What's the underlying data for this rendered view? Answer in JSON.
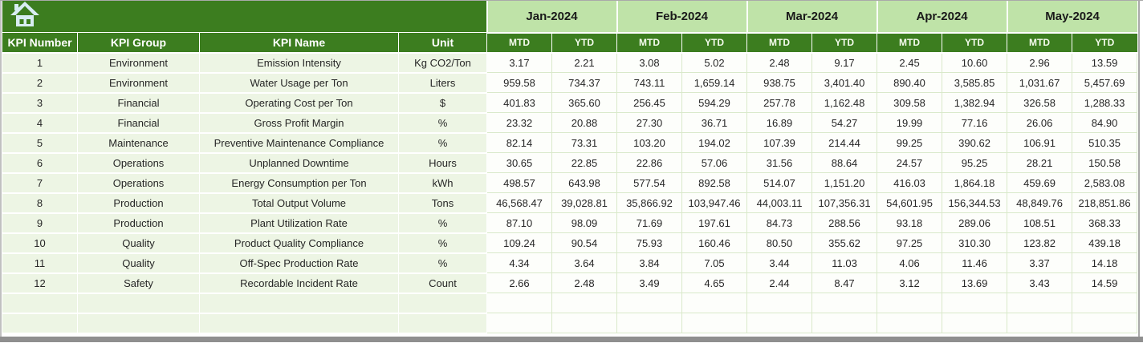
{
  "table": {
    "fixed_headers": [
      "KPI Number",
      "KPI Group",
      "KPI Name",
      "Unit"
    ],
    "months": [
      "Jan-2024",
      "Feb-2024",
      "Mar-2024",
      "Apr-2024",
      "May-2024"
    ],
    "sub_headers": [
      "MTD",
      "YTD"
    ],
    "rows": [
      {
        "kpi_number": "1",
        "kpi_group": "Environment",
        "kpi_name": "Emission Intensity",
        "unit": "Kg CO2/Ton",
        "values": [
          "3.17",
          "2.21",
          "3.08",
          "5.02",
          "2.48",
          "9.17",
          "2.45",
          "10.60",
          "2.96",
          "13.59"
        ]
      },
      {
        "kpi_number": "2",
        "kpi_group": "Environment",
        "kpi_name": "Water Usage per Ton",
        "unit": "Liters",
        "values": [
          "959.58",
          "734.37",
          "743.11",
          "1,659.14",
          "938.75",
          "3,401.40",
          "890.40",
          "3,585.85",
          "1,031.67",
          "5,457.69"
        ]
      },
      {
        "kpi_number": "3",
        "kpi_group": "Financial",
        "kpi_name": "Operating Cost per Ton",
        "unit": "$",
        "values": [
          "401.83",
          "365.60",
          "256.45",
          "594.29",
          "257.78",
          "1,162.48",
          "309.58",
          "1,382.94",
          "326.58",
          "1,288.33"
        ]
      },
      {
        "kpi_number": "4",
        "kpi_group": "Financial",
        "kpi_name": "Gross Profit Margin",
        "unit": "%",
        "values": [
          "23.32",
          "20.88",
          "27.30",
          "36.71",
          "16.89",
          "54.27",
          "19.99",
          "77.16",
          "26.06",
          "84.90"
        ]
      },
      {
        "kpi_number": "5",
        "kpi_group": "Maintenance",
        "kpi_name": "Preventive Maintenance Compliance",
        "unit": "%",
        "values": [
          "82.14",
          "73.31",
          "103.20",
          "194.02",
          "107.39",
          "214.44",
          "99.25",
          "390.62",
          "106.91",
          "510.35"
        ]
      },
      {
        "kpi_number": "6",
        "kpi_group": "Operations",
        "kpi_name": "Unplanned Downtime",
        "unit": "Hours",
        "values": [
          "30.65",
          "22.85",
          "22.86",
          "57.06",
          "31.56",
          "88.64",
          "24.57",
          "95.25",
          "28.21",
          "150.58"
        ]
      },
      {
        "kpi_number": "7",
        "kpi_group": "Operations",
        "kpi_name": "Energy Consumption per Ton",
        "unit": "kWh",
        "values": [
          "498.57",
          "643.98",
          "577.54",
          "892.58",
          "514.07",
          "1,151.20",
          "416.03",
          "1,864.18",
          "459.69",
          "2,583.08"
        ]
      },
      {
        "kpi_number": "8",
        "kpi_group": "Production",
        "kpi_name": "Total Output Volume",
        "unit": "Tons",
        "values": [
          "46,568.47",
          "39,028.81",
          "35,866.92",
          "103,947.46",
          "44,003.11",
          "107,356.31",
          "54,601.95",
          "156,344.53",
          "48,849.76",
          "218,851.86"
        ]
      },
      {
        "kpi_number": "9",
        "kpi_group": "Production",
        "kpi_name": "Plant Utilization Rate",
        "unit": "%",
        "values": [
          "87.10",
          "98.09",
          "71.69",
          "197.61",
          "84.73",
          "288.56",
          "93.18",
          "289.06",
          "108.51",
          "368.33"
        ]
      },
      {
        "kpi_number": "10",
        "kpi_group": "Quality",
        "kpi_name": "Product Quality Compliance",
        "unit": "%",
        "values": [
          "109.24",
          "90.54",
          "75.93",
          "160.46",
          "80.50",
          "355.62",
          "97.25",
          "310.30",
          "123.82",
          "439.18"
        ]
      },
      {
        "kpi_number": "11",
        "kpi_group": "Quality",
        "kpi_name": "Off-Spec Production Rate",
        "unit": "%",
        "values": [
          "4.34",
          "3.64",
          "3.84",
          "7.05",
          "3.44",
          "11.03",
          "4.06",
          "11.46",
          "3.37",
          "14.18"
        ]
      },
      {
        "kpi_number": "12",
        "kpi_group": "Safety",
        "kpi_name": "Recordable Incident Rate",
        "unit": "Count",
        "values": [
          "2.66",
          "2.48",
          "3.49",
          "4.65",
          "2.44",
          "8.47",
          "3.12",
          "13.69",
          "3.43",
          "14.59"
        ]
      }
    ],
    "empty_row_count": 2
  },
  "colors": {
    "header-green": "#3c7d1f",
    "month-green": "#bfe3a8",
    "left-cell": "#edf5e4",
    "data-cell": "#fdfefb",
    "grid-green": "#d9e9ca",
    "frame-gray": "#8f8f8f",
    "icon-blue": "#d8edf3"
  }
}
